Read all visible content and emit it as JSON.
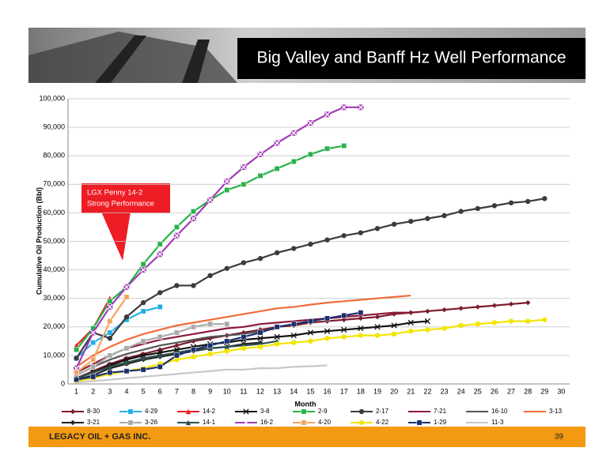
{
  "slide": {
    "footer": "LEGACY OIL + GAS INC.",
    "page": "39"
  },
  "chart_data": {
    "type": "line",
    "title": "Big Valley and Banff Hz Well Performance",
    "x_label": "Month",
    "y_label": "Cumulative Oil Production (Bbl)",
    "annotation": [
      "LGX Penny 14-2",
      "Strong Performance"
    ],
    "categories": [
      1,
      2,
      3,
      4,
      5,
      6,
      7,
      8,
      9,
      10,
      11,
      12,
      13,
      14,
      15,
      16,
      17,
      18,
      19,
      20,
      21,
      22,
      23,
      24,
      25,
      26,
      27,
      28,
      29,
      30
    ],
    "ylim": [
      0,
      100000
    ],
    "yticks": [
      0,
      {
        "value": 10000,
        "label": "10,000"
      },
      {
        "value": 20000,
        "label": "20,000"
      },
      {
        "value": 30000,
        "label": "30,000"
      },
      {
        "value": 40000,
        "label": "40,000"
      },
      {
        "value": 50000,
        "label": "50,000"
      },
      {
        "value": 60000,
        "label": "60,000"
      },
      {
        "value": 70000,
        "label": "70,000"
      },
      {
        "value": 80000,
        "label": "80,000"
      },
      {
        "value": 90000,
        "label": "90,000"
      },
      {
        "value": 100000,
        "label": "100,000"
      }
    ],
    "grid": true,
    "series": [
      {
        "name": "8-30",
        "color": "#7b1c2e",
        "marker": "diamond",
        "values": [
          2000,
          4500,
          7000,
          9000,
          10500,
          12000,
          13500,
          15000,
          16000,
          17000,
          18000,
          19000,
          20000,
          20500,
          21500,
          22000,
          22500,
          23000,
          23500,
          24500,
          25000,
          25500,
          26000,
          26500,
          27000,
          27500,
          28000,
          28500,
          null,
          null
        ]
      },
      {
        "name": "4-29",
        "color": "#1fb0e6",
        "marker": "square",
        "values": [
          9000,
          14500,
          18000,
          22500,
          25500,
          27000,
          null,
          null,
          null,
          null,
          null,
          null,
          null,
          null,
          null,
          null,
          null,
          null,
          null,
          null,
          null,
          null,
          null,
          null,
          null,
          null,
          null,
          null,
          null,
          null
        ]
      },
      {
        "name": "14-2",
        "color": "#ee1c24",
        "marker": "triangle",
        "values": [
          13500,
          19500,
          30000,
          null,
          null,
          null,
          null,
          null,
          null,
          null,
          null,
          null,
          null,
          null,
          null,
          null,
          null,
          null,
          null,
          null,
          null,
          null,
          null,
          null,
          null,
          null,
          null,
          null,
          null,
          null
        ]
      },
      {
        "name": "3-8",
        "color": "#111111",
        "marker": "x",
        "values": [
          2000,
          4000,
          6500,
          8500,
          10000,
          11000,
          12000,
          13000,
          14000,
          14500,
          15500,
          16000,
          16500,
          17000,
          18000,
          18500,
          19000,
          19500,
          20000,
          20500,
          21500,
          22000,
          null,
          null,
          null,
          null,
          null,
          null,
          null,
          null
        ]
      },
      {
        "name": "2-9",
        "color": "#2ab24a",
        "marker": "square",
        "values": [
          12000,
          19500,
          29000,
          34000,
          42000,
          49000,
          55000,
          60500,
          64500,
          68000,
          70000,
          73000,
          75500,
          78000,
          80500,
          82500,
          83500,
          null,
          null,
          null,
          null,
          null,
          null,
          null,
          null,
          null,
          null,
          null,
          null,
          null
        ]
      },
      {
        "name": "2-17",
        "color": "#3c3c3c",
        "marker": "circle",
        "values": [
          9000,
          18000,
          16000,
          23500,
          28500,
          32000,
          34500,
          34500,
          38000,
          40500,
          42500,
          44000,
          46000,
          47500,
          49000,
          50500,
          52000,
          53000,
          54500,
          56000,
          57000,
          58000,
          59000,
          60500,
          61500,
          62500,
          63500,
          64000,
          65000,
          null
        ]
      },
      {
        "name": "7-21",
        "color": "#8b1a3a",
        "marker": "none",
        "values": [
          4000,
          7000,
          10000,
          12500,
          14000,
          15500,
          16500,
          17500,
          18500,
          19500,
          20000,
          21000,
          21500,
          22000,
          22500,
          23000,
          23500,
          24000,
          24500,
          25000,
          25000,
          null,
          null,
          null,
          null,
          null,
          null,
          null,
          null,
          null
        ]
      },
      {
        "name": "16-10",
        "color": "#555555",
        "marker": "none",
        "values": [
          3000,
          6000,
          8500,
          10500,
          12000,
          13500,
          14500,
          15500,
          16500,
          17000,
          17500,
          18500,
          19500,
          null,
          null,
          null,
          null,
          null,
          null,
          null,
          null,
          null,
          null,
          null,
          null,
          null,
          null,
          null,
          null,
          null
        ]
      },
      {
        "name": "3-13",
        "color": "#f26b3a",
        "marker": "none",
        "values": [
          6000,
          10000,
          13000,
          15500,
          17500,
          19000,
          20500,
          21500,
          22500,
          23500,
          24500,
          25500,
          26500,
          27000,
          27800,
          28500,
          29000,
          29500,
          30000,
          30500,
          31000,
          null,
          null,
          null,
          null,
          null,
          null,
          null,
          null,
          null
        ]
      },
      {
        "name": "3-21",
        "color": "#222222",
        "marker": "diamond",
        "values": [
          1500,
          3000,
          5500,
          7000,
          8500,
          9500,
          10500,
          11500,
          12500,
          13000,
          14000,
          14500,
          null,
          null,
          null,
          null,
          null,
          null,
          null,
          null,
          null,
          null,
          null,
          null,
          null,
          null,
          null,
          null,
          null,
          null
        ]
      },
      {
        "name": "3-26",
        "color": "#aaaaaa",
        "marker": "square",
        "values": [
          3000,
          6000,
          10000,
          12500,
          15000,
          16500,
          18000,
          20000,
          21000,
          21000,
          null,
          null,
          null,
          null,
          null,
          null,
          null,
          null,
          null,
          null,
          null,
          null,
          null,
          null,
          null,
          null,
          null,
          null,
          null,
          null
        ]
      },
      {
        "name": "14-1",
        "color": "#2f4f4f",
        "marker": "triangle",
        "values": [
          2000,
          4000,
          6000,
          7500,
          9000,
          10000,
          11000,
          12000,
          12500,
          13000,
          13500,
          14000,
          15000,
          null,
          null,
          null,
          null,
          null,
          null,
          null,
          null,
          null,
          null,
          null,
          null,
          null,
          null,
          null,
          null,
          null
        ]
      },
      {
        "name": "16-2",
        "color": "#a23bb5",
        "marker": "x",
        "values": [
          5500,
          18000,
          27000,
          34000,
          40000,
          45500,
          52000,
          58000,
          64500,
          71000,
          76000,
          80500,
          84500,
          88000,
          91500,
          94500,
          97000,
          97000,
          null,
          null,
          null,
          null,
          null,
          null,
          null,
          null,
          null,
          null,
          null,
          null
        ]
      },
      {
        "name": "4-20",
        "color": "#f4a460",
        "marker": "square",
        "values": [
          4000,
          8500,
          22000,
          30500,
          null,
          null,
          null,
          null,
          null,
          null,
          null,
          null,
          null,
          null,
          null,
          null,
          null,
          null,
          null,
          null,
          null,
          null,
          null,
          null,
          null,
          null,
          null,
          null,
          null,
          null
        ]
      },
      {
        "name": "4-22",
        "color": "#f2e600",
        "marker": "circle",
        "values": [
          1000,
          2000,
          3500,
          4500,
          5500,
          7000,
          8500,
          9500,
          10500,
          11500,
          12500,
          13000,
          14000,
          14500,
          15000,
          16000,
          16500,
          17000,
          17000,
          17500,
          18500,
          19000,
          19500,
          20500,
          21000,
          21500,
          22000,
          22000,
          22500,
          null
        ]
      },
      {
        "name": "1-29",
        "color": "#1c2f6e",
        "marker": "square",
        "values": [
          1500,
          2500,
          4000,
          4500,
          5000,
          6000,
          10000,
          12000,
          13500,
          15000,
          16500,
          18000,
          20000,
          21000,
          22000,
          23000,
          24000,
          25000,
          null,
          null,
          null,
          null,
          null,
          null,
          null,
          null,
          null,
          null,
          null,
          null
        ]
      },
      {
        "name": "11-3",
        "color": "#c8c8c8",
        "marker": "none",
        "values": [
          500,
          1000,
          1500,
          2000,
          2500,
          3000,
          3500,
          4000,
          4500,
          5000,
          5000,
          5500,
          5500,
          6000,
          6200,
          6500,
          null,
          null,
          null,
          null,
          null,
          null,
          null,
          null,
          null,
          null,
          null,
          null,
          null,
          null
        ]
      }
    ]
  }
}
